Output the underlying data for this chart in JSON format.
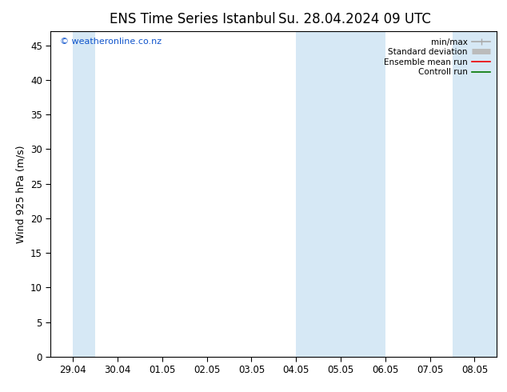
{
  "title_left": "ENS Time Series Istanbul",
  "title_right": "Su. 28.04.2024 09 UTC",
  "ylabel": "Wind 925 hPa (m/s)",
  "ylim": [
    0,
    47
  ],
  "yticks": [
    0,
    5,
    10,
    15,
    20,
    25,
    30,
    35,
    40,
    45
  ],
  "xtick_labels": [
    "29.04",
    "30.04",
    "01.05",
    "02.05",
    "03.05",
    "04.05",
    "05.05",
    "06.05",
    "07.05",
    "08.05"
  ],
  "watermark": "© weatheronline.co.nz",
  "shade_color": "#d6e8f5",
  "background_color": "#ffffff",
  "legend_items": [
    {
      "label": "min/max",
      "color": "#aaaaaa",
      "lw": 1.2
    },
    {
      "label": "Standard deviation",
      "color": "#bbbbbb",
      "lw": 5
    },
    {
      "label": "Ensemble mean run",
      "color": "#ee0000",
      "lw": 1.2
    },
    {
      "label": "Controll run",
      "color": "#007700",
      "lw": 1.2
    }
  ],
  "title_fontsize": 12,
  "axis_label_fontsize": 9,
  "tick_fontsize": 8.5,
  "watermark_fontsize": 8,
  "watermark_color": "#1155cc",
  "shaded_xranges": [
    [
      0.0,
      0.5
    ],
    [
      5.0,
      7.0
    ],
    [
      8.5,
      9.5
    ]
  ]
}
